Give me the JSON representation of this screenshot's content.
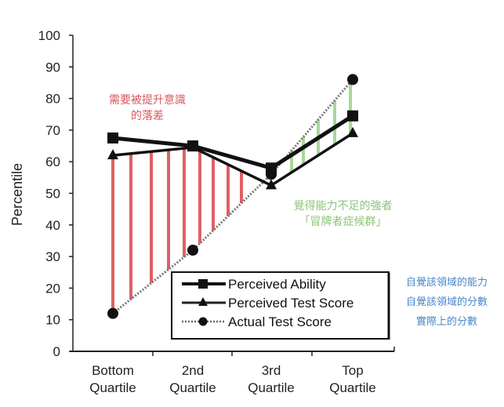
{
  "chart_data": {
    "type": "line",
    "title": "",
    "xlabel": "",
    "ylabel": "Percentile",
    "ylim": [
      0,
      100
    ],
    "yticks": [
      0,
      10,
      20,
      30,
      40,
      50,
      60,
      70,
      80,
      90,
      100
    ],
    "categories": [
      "Bottom Quartile",
      "2nd Quartile",
      "3rd Quartile",
      "Top Quartile"
    ],
    "category_lines": [
      [
        "Bottom",
        "Quartile"
      ],
      [
        "2nd",
        "Quartile"
      ],
      [
        "3rd",
        "Quartile"
      ],
      [
        "Top",
        "Quartile"
      ]
    ],
    "grid": false,
    "legend_position": "lower right inside",
    "series": [
      {
        "name": "Perceived Ability",
        "marker": "square",
        "style": "solid",
        "values": [
          67.5,
          65,
          58,
          74.5
        ]
      },
      {
        "name": "Perceived Test Score",
        "marker": "triangle",
        "style": "solid-thin",
        "values": [
          62,
          64.5,
          52.5,
          69
        ]
      },
      {
        "name": "Actual Test Score",
        "marker": "circle",
        "style": "dotted",
        "values": [
          12,
          32,
          56,
          86
        ]
      }
    ],
    "gap_highlights": [
      {
        "color": "#e06064",
        "label": "需要被提升意識的落差",
        "range": "Bottom to 2nd/3rd quartile (overestimation)"
      },
      {
        "color": "#a8d898",
        "label": "覺得能力不足的強者「冒牌者症候群」",
        "range": "3rd to Top quartile (underestimation)"
      }
    ]
  },
  "annotations": {
    "red": {
      "lines": [
        "需要被提升意識",
        "的落差"
      ],
      "color": "#d85a5e"
    },
    "green": {
      "lines": [
        "覺得能力不足的強者",
        "「冒牌者症候群」"
      ],
      "color": "#8cc57a"
    },
    "blue": {
      "lines": [
        "自覺該領域的能力",
        "自覺該領域的分數",
        "實際上的分數"
      ],
      "color": "#4a86c8"
    }
  },
  "colors": {
    "axis": "#222222",
    "red_gap": "#e06064",
    "green_gap": "#a8d898",
    "series": "#111111"
  }
}
